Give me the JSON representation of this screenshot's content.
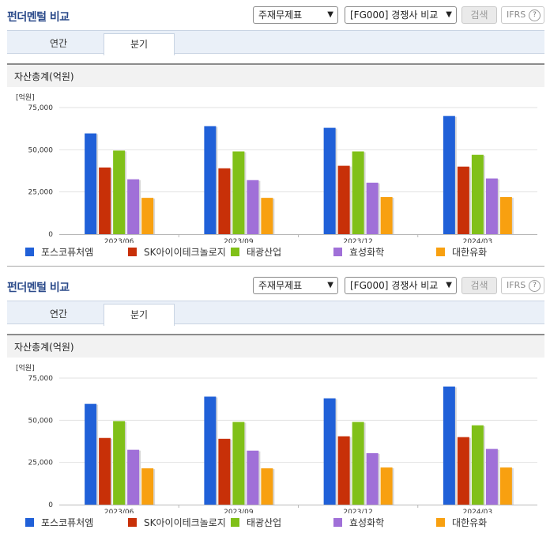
{
  "panels": [
    {
      "title": "펀더멘털 비교",
      "select_statement": "주재무제표",
      "select_compare": "[FG000] 경쟁사 비교",
      "search_label": "검색",
      "ifrs_label": "IFRS",
      "help_icon": "?",
      "tabs": [
        {
          "label": "연간",
          "active": false
        },
        {
          "label": "분기",
          "active": true
        }
      ],
      "section_title": "자산총계(억원)",
      "unit_label": "[억원]"
    },
    {
      "title": "펀더멘털 비교",
      "select_statement": "주재무제표",
      "select_compare": "[FG000] 경쟁사 비교",
      "search_label": "검색",
      "ifrs_label": "IFRS",
      "help_icon": "?",
      "tabs": [
        {
          "label": "연간",
          "active": false
        },
        {
          "label": "분기",
          "active": true
        }
      ],
      "section_title": "자산총계(억원)",
      "unit_label": "[억원]"
    }
  ],
  "chart_data": [
    {
      "type": "bar",
      "title": "자산총계(억원)",
      "ylabel": "[억원]",
      "ylim": [
        0,
        75000
      ],
      "yticks": [
        "75,000",
        "50,000",
        "25,000",
        "0"
      ],
      "categories": [
        "2023/06",
        "2023/09",
        "2023/12",
        "2024/03"
      ],
      "series": [
        {
          "name": "포스코퓨처엠",
          "color": "#2060d8",
          "values": [
            59700,
            64000,
            63000,
            70000
          ]
        },
        {
          "name": "SK아이이테크놀로지",
          "color": "#c83008",
          "values": [
            39500,
            39000,
            40500,
            40000
          ]
        },
        {
          "name": "태광산업",
          "color": "#80c018",
          "values": [
            49500,
            49000,
            49000,
            47000
          ]
        },
        {
          "name": "효성화학",
          "color": "#a070d8",
          "values": [
            32500,
            32000,
            30500,
            33000
          ]
        },
        {
          "name": "대한유화",
          "color": "#f8a010",
          "values": [
            21500,
            21500,
            22000,
            22000
          ]
        }
      ]
    },
    {
      "type": "bar",
      "title": "자산총계(억원)",
      "ylabel": "[억원]",
      "ylim": [
        0,
        75000
      ],
      "yticks": [
        "75,000",
        "50,000",
        "25,000",
        "0"
      ],
      "categories": [
        "2023/06",
        "2023/09",
        "2023/12",
        "2024/03"
      ],
      "series": [
        {
          "name": "포스코퓨처엠",
          "color": "#2060d8",
          "values": [
            59700,
            64000,
            63000,
            70000
          ]
        },
        {
          "name": "SK아이이테크놀로지",
          "color": "#c83008",
          "values": [
            39500,
            39000,
            40500,
            40000
          ]
        },
        {
          "name": "태광산업",
          "color": "#80c018",
          "values": [
            49500,
            49000,
            49000,
            47000
          ]
        },
        {
          "name": "효성화학",
          "color": "#a070d8",
          "values": [
            32500,
            32000,
            30500,
            33000
          ]
        },
        {
          "name": "대한유화",
          "color": "#f8a010",
          "values": [
            21500,
            21500,
            22000,
            22000
          ]
        }
      ]
    }
  ]
}
